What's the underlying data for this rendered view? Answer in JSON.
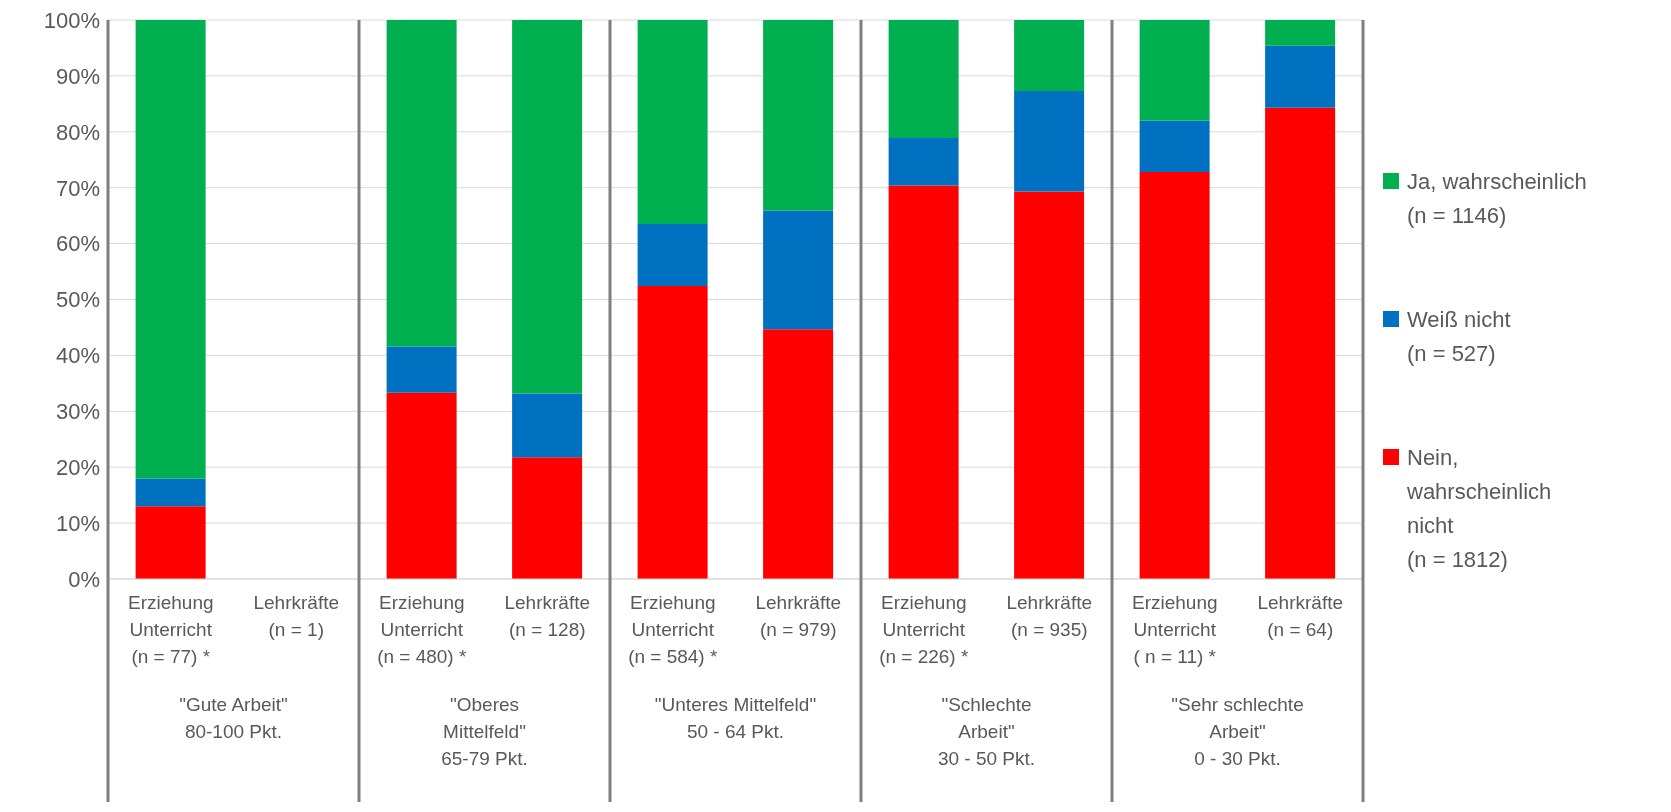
{
  "chart_data": {
    "type": "bar",
    "stacked": true,
    "categories": [
      "Erziehung\nUnterricht\n(n = 77) *",
      "Lehrkräfte\n(n = 1)",
      "Erziehung\nUnterricht\n(n = 480) *",
      "Lehrkräfte\n(n = 128)",
      "Erziehung\nUnterricht\n(n = 584) *",
      "Lehrkräfte\n(n = 979)",
      "Erziehung\nUnterricht\n(n = 226) *",
      "Lehrkräfte\n(n = 935)",
      "Erziehung\nUnterricht\n( n = 11) *",
      "Lehrkräfte\n(n = 64)"
    ],
    "series": [
      {
        "name": "Nein,\nwahrscheinlich\nnicht\n(n = 1812)",
        "color": "#ff0000",
        "values": [
          13.0,
          null,
          33.3,
          21.8,
          52.4,
          44.7,
          70.4,
          69.3,
          72.8,
          84.3
        ]
      },
      {
        "name": "Weiß nicht\n(n = 527)",
        "color": "#0070c0",
        "values": [
          5.0,
          null,
          8.3,
          11.4,
          11.1,
          21.2,
          8.5,
          18.0,
          9.2,
          11.1
        ]
      },
      {
        "name": "Ja, wahrscheinlich\n(n = 1146)",
        "color": "#00b050",
        "values": [
          82.0,
          null,
          58.4,
          66.8,
          36.5,
          34.1,
          21.1,
          12.7,
          18.0,
          4.6
        ]
      }
    ],
    "annotations": [
      "\"Gute Arbeit\"\n80-100 Pkt.",
      "\"Oberes\nMittelfeld\"\n65-79 Pkt.",
      "\"Unteres Mittelfeld\"\n50 - 64 Pkt.",
      "\"Schlechte\nArbeit\"\n30 - 50 Pkt.",
      "\"Sehr schlechte\nArbeit\"\n0 - 30 Pkt."
    ],
    "ylim": [
      0,
      100
    ],
    "yticks": [
      {
        "value": 0,
        "label": "0%"
      },
      {
        "value": 10,
        "label": "10%"
      },
      {
        "value": 20,
        "label": "20%"
      },
      {
        "value": 30,
        "label": "30%"
      },
      {
        "value": 40,
        "label": "40%"
      },
      {
        "value": 50,
        "label": "50%"
      },
      {
        "value": 60,
        "label": "60%"
      },
      {
        "value": 70,
        "label": "70%"
      },
      {
        "value": 80,
        "label": "80%"
      },
      {
        "value": 90,
        "label": "90%"
      },
      {
        "value": 100,
        "label": "100%"
      }
    ],
    "grid": "y",
    "legend": "right"
  }
}
